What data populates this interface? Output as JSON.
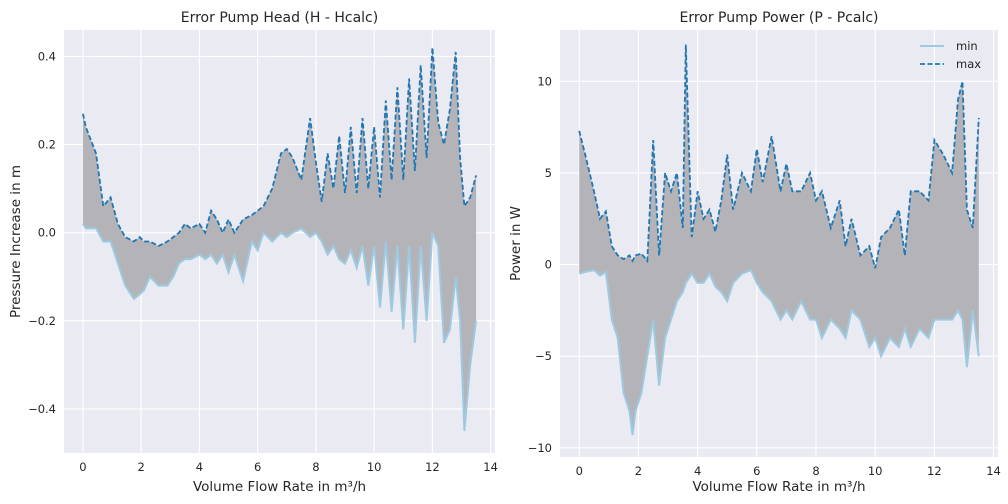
{
  "figure": {
    "background": "#ffffff",
    "axes_face": "#eaeaf2",
    "grid_color": "#ffffff",
    "fill_color": "#b3b3b8",
    "min_color": "#9ecae1",
    "max_color": "#1f77b4"
  },
  "chart_data": [
    {
      "type": "area",
      "title": "Error Pump Head (H - Hcalc)",
      "xlabel": "Volume Flow Rate in m³/h",
      "ylabel": "Pressure Increase in m",
      "xlim": [
        -0.65,
        14.15
      ],
      "ylim": [
        -0.5,
        0.46
      ],
      "xticks": [
        0,
        2,
        4,
        6,
        8,
        10,
        12,
        14
      ],
      "yticks": [
        -0.4,
        -0.2,
        0.0,
        0.2,
        0.4
      ],
      "xtick_labels": [
        "0",
        "2",
        "4",
        "6",
        "8",
        "10",
        "12",
        "14"
      ],
      "ytick_labels": [
        "−0.4",
        "−0.2",
        "0.0",
        "0.2",
        "0.4"
      ],
      "grid": true,
      "legend": null,
      "series": [
        {
          "name": "min",
          "style": "solid",
          "x": [
            0.0,
            0.1,
            0.45,
            0.7,
            0.95,
            1.2,
            1.45,
            1.75,
            1.95,
            2.1,
            2.3,
            2.6,
            2.9,
            3.1,
            3.3,
            3.5,
            3.7,
            4.0,
            4.2,
            4.4,
            4.6,
            4.8,
            5.0,
            5.2,
            5.5,
            5.8,
            6.0,
            6.2,
            6.5,
            6.8,
            7.0,
            7.2,
            7.5,
            7.8,
            8.0,
            8.2,
            8.4,
            8.6,
            8.8,
            9.0,
            9.2,
            9.4,
            9.6,
            9.8,
            10.0,
            10.2,
            10.4,
            10.6,
            10.8,
            11.0,
            11.2,
            11.4,
            11.6,
            11.8,
            12.0,
            12.2,
            12.4,
            12.6,
            12.8,
            12.95,
            13.1,
            13.3,
            13.5
          ],
          "y": [
            0.02,
            0.01,
            0.01,
            -0.02,
            -0.02,
            -0.07,
            -0.12,
            -0.15,
            -0.14,
            -0.13,
            -0.1,
            -0.12,
            -0.12,
            -0.1,
            -0.07,
            -0.06,
            -0.06,
            -0.05,
            -0.06,
            -0.05,
            -0.07,
            -0.05,
            -0.09,
            -0.05,
            -0.11,
            -0.02,
            -0.04,
            0.0,
            -0.02,
            0.0,
            -0.01,
            0.0,
            0.01,
            -0.01,
            0.0,
            -0.02,
            -0.05,
            -0.03,
            -0.06,
            -0.07,
            -0.04,
            -0.08,
            -0.03,
            -0.12,
            -0.03,
            -0.17,
            -0.02,
            -0.18,
            -0.03,
            -0.22,
            -0.03,
            -0.25,
            -0.03,
            -0.2,
            0.0,
            -0.03,
            -0.25,
            -0.22,
            -0.1,
            -0.2,
            -0.45,
            -0.3,
            -0.2
          ]
        },
        {
          "name": "max",
          "style": "dashed",
          "x": [
            0.0,
            0.1,
            0.45,
            0.7,
            0.95,
            1.2,
            1.45,
            1.75,
            1.95,
            2.1,
            2.3,
            2.6,
            2.9,
            3.1,
            3.3,
            3.5,
            3.7,
            4.0,
            4.2,
            4.4,
            4.6,
            4.8,
            5.0,
            5.2,
            5.5,
            5.8,
            6.0,
            6.2,
            6.5,
            6.8,
            7.0,
            7.2,
            7.5,
            7.8,
            8.0,
            8.2,
            8.4,
            8.6,
            8.8,
            9.0,
            9.2,
            9.4,
            9.6,
            9.8,
            10.0,
            10.2,
            10.4,
            10.6,
            10.8,
            11.0,
            11.2,
            11.4,
            11.6,
            11.8,
            12.0,
            12.2,
            12.4,
            12.6,
            12.8,
            12.95,
            13.1,
            13.3,
            13.5
          ],
          "y": [
            0.27,
            0.24,
            0.18,
            0.06,
            0.08,
            0.02,
            -0.01,
            -0.02,
            -0.01,
            -0.02,
            -0.02,
            -0.03,
            -0.02,
            -0.01,
            0.0,
            0.02,
            0.01,
            0.02,
            0.0,
            0.05,
            0.03,
            0.0,
            0.03,
            0.0,
            0.03,
            0.04,
            0.05,
            0.06,
            0.1,
            0.18,
            0.19,
            0.17,
            0.12,
            0.26,
            0.16,
            0.07,
            0.18,
            0.1,
            0.22,
            0.09,
            0.24,
            0.09,
            0.26,
            0.1,
            0.24,
            0.08,
            0.3,
            0.12,
            0.33,
            0.12,
            0.35,
            0.14,
            0.38,
            0.17,
            0.42,
            0.25,
            0.2,
            0.28,
            0.41,
            0.17,
            0.06,
            0.08,
            0.13
          ]
        }
      ]
    },
    {
      "type": "area",
      "title": "Error Pump Power (P - Pcalc)",
      "xlabel": "Volume Flow Rate in m³/h",
      "ylabel": "Power in W",
      "xlim": [
        -0.65,
        14.15
      ],
      "ylim": [
        -10.5,
        12.8
      ],
      "xticks": [
        0,
        2,
        4,
        6,
        8,
        10,
        12,
        14
      ],
      "yticks": [
        -10,
        -5,
        0,
        5,
        10
      ],
      "xtick_labels": [
        "0",
        "2",
        "4",
        "6",
        "8",
        "10",
        "12",
        "14"
      ],
      "ytick_labels": [
        "−10",
        "−5",
        "0",
        "5",
        "10"
      ],
      "grid": true,
      "legend": {
        "placement": "top-right",
        "labels": [
          "min",
          "max"
        ]
      },
      "series": [
        {
          "name": "min",
          "style": "solid",
          "x": [
            0.0,
            0.2,
            0.5,
            0.7,
            0.9,
            1.1,
            1.3,
            1.5,
            1.7,
            1.8,
            1.9,
            2.1,
            2.3,
            2.5,
            2.7,
            2.9,
            3.1,
            3.3,
            3.5,
            3.6,
            3.8,
            4.0,
            4.2,
            4.4,
            4.6,
            4.8,
            5.0,
            5.2,
            5.5,
            5.8,
            6.0,
            6.2,
            6.5,
            6.8,
            7.0,
            7.2,
            7.5,
            7.8,
            8.0,
            8.2,
            8.5,
            8.8,
            9.0,
            9.2,
            9.5,
            9.8,
            10.0,
            10.2,
            10.5,
            10.8,
            11.0,
            11.2,
            11.5,
            11.8,
            12.0,
            12.3,
            12.6,
            12.8,
            12.95,
            13.1,
            13.3,
            13.5
          ],
          "y": [
            -0.5,
            -0.4,
            -0.3,
            -0.6,
            -0.4,
            -3.0,
            -4.0,
            -7.0,
            -8.0,
            -9.3,
            -8.0,
            -7.0,
            -5.0,
            -3.0,
            -6.6,
            -4.0,
            -3.0,
            -2.0,
            -1.5,
            -1.0,
            -0.5,
            -1.0,
            -1.0,
            -0.5,
            -1.2,
            -1.5,
            -2.0,
            -1.0,
            -0.5,
            -0.3,
            -1.0,
            -1.5,
            -2.0,
            -3.0,
            -2.5,
            -3.0,
            -2.0,
            -3.0,
            -3.0,
            -4.0,
            -3.0,
            -3.5,
            -4.0,
            -2.5,
            -3.0,
            -4.5,
            -4.0,
            -5.0,
            -4.0,
            -4.5,
            -3.5,
            -4.5,
            -3.5,
            -4.0,
            -3.0,
            -3.0,
            -3.0,
            -2.5,
            -3.0,
            -5.6,
            -2.5,
            -5.0
          ]
        },
        {
          "name": "max",
          "style": "dashed",
          "x": [
            0.0,
            0.2,
            0.5,
            0.7,
            0.9,
            1.1,
            1.3,
            1.5,
            1.7,
            1.8,
            1.9,
            2.1,
            2.3,
            2.5,
            2.7,
            2.9,
            3.1,
            3.3,
            3.5,
            3.6,
            3.8,
            4.0,
            4.2,
            4.4,
            4.6,
            4.8,
            5.0,
            5.2,
            5.5,
            5.8,
            6.0,
            6.2,
            6.5,
            6.8,
            7.0,
            7.2,
            7.5,
            7.8,
            8.0,
            8.2,
            8.5,
            8.8,
            9.0,
            9.2,
            9.5,
            9.8,
            10.0,
            10.2,
            10.5,
            10.8,
            11.0,
            11.2,
            11.5,
            11.8,
            12.0,
            12.3,
            12.6,
            12.8,
            12.95,
            13.1,
            13.3,
            13.5
          ],
          "y": [
            7.3,
            6.0,
            4.0,
            2.5,
            2.9,
            1.0,
            0.5,
            0.3,
            0.5,
            0.2,
            0.5,
            0.6,
            0.2,
            6.8,
            0.5,
            5.0,
            4.0,
            5.0,
            2.0,
            12.0,
            1.5,
            4.0,
            2.5,
            3.0,
            1.8,
            3.5,
            6.0,
            3.0,
            5.0,
            4.0,
            6.3,
            4.5,
            7.0,
            4.0,
            5.5,
            4.0,
            4.0,
            5.0,
            3.5,
            4.0,
            2.0,
            3.5,
            1.0,
            2.5,
            0.5,
            1.0,
            -0.2,
            1.5,
            2.0,
            3.0,
            0.5,
            4.0,
            4.0,
            3.5,
            6.8,
            6.0,
            5.0,
            9.0,
            10.0,
            3.0,
            2.0,
            8.0
          ]
        }
      ]
    }
  ]
}
